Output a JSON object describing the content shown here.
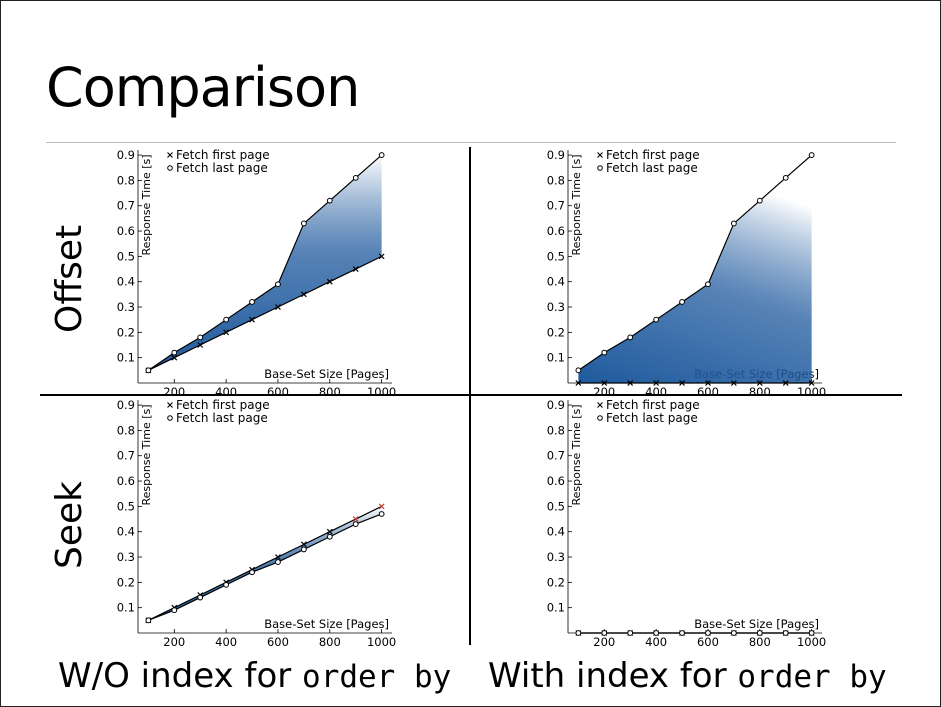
{
  "slide": {
    "title": "Comparison",
    "row_labels": [
      "Offset",
      "Seek"
    ],
    "col_labels": [
      {
        "text": "W/O index for ",
        "code": "order by"
      },
      {
        "text": "With index for ",
        "code": "order by"
      }
    ]
  },
  "colors": {
    "fill_dark": "#1f5a9e",
    "fill_light": "#ffffff",
    "line": "#000000",
    "marker_red": "#c0392b"
  },
  "chart_data": [
    {
      "type": "area",
      "panel": "Offset / W/O index",
      "xlabel": "Base-Set Size [Pages]",
      "ylabel": "Response Time [s]",
      "xlim": [
        60,
        1040
      ],
      "ylim": [
        0,
        0.92
      ],
      "xticks": [
        200,
        400,
        600,
        800,
        1000
      ],
      "yticks": [
        0.1,
        0.2,
        0.3,
        0.4,
        0.5,
        0.6,
        0.7,
        0.8,
        0.9
      ],
      "legend": "top-left",
      "x": [
        100,
        200,
        300,
        400,
        500,
        600,
        700,
        800,
        900,
        1000
      ],
      "series": [
        {
          "name": "Fetch first page",
          "marker": "x",
          "values": [
            0.05,
            0.1,
            0.15,
            0.2,
            0.25,
            0.3,
            0.35,
            0.4,
            0.45,
            0.5
          ]
        },
        {
          "name": "Fetch last page",
          "marker": "o",
          "values": [
            0.05,
            0.12,
            0.18,
            0.25,
            0.32,
            0.39,
            0.63,
            0.72,
            0.81,
            0.9
          ]
        }
      ]
    },
    {
      "type": "area",
      "panel": "Offset / With index",
      "xlabel": "Base-Set Size [Pages]",
      "ylabel": "Response Time [s]",
      "xlim": [
        60,
        1040
      ],
      "ylim": [
        0,
        0.92
      ],
      "xticks": [
        200,
        400,
        600,
        800,
        1000
      ],
      "yticks": [
        0.1,
        0.2,
        0.3,
        0.4,
        0.5,
        0.6,
        0.7,
        0.8,
        0.9
      ],
      "legend": "top-left",
      "x": [
        100,
        200,
        300,
        400,
        500,
        600,
        700,
        800,
        900,
        1000
      ],
      "series": [
        {
          "name": "Fetch first page",
          "marker": "x",
          "values": [
            0.0,
            0.0,
            0.0,
            0.0,
            0.0,
            0.0,
            0.0,
            0.0,
            0.0,
            0.0
          ]
        },
        {
          "name": "Fetch last page",
          "marker": "o",
          "values": [
            0.05,
            0.12,
            0.18,
            0.25,
            0.32,
            0.39,
            0.63,
            0.72,
            0.81,
            0.9
          ]
        }
      ]
    },
    {
      "type": "area",
      "panel": "Seek / W/O index",
      "xlabel": "Base-Set Size [Pages]",
      "ylabel": "Response Time [s]",
      "xlim": [
        60,
        1040
      ],
      "ylim": [
        0,
        0.92
      ],
      "xticks": [
        200,
        400,
        600,
        800,
        1000
      ],
      "yticks": [
        0.1,
        0.2,
        0.3,
        0.4,
        0.5,
        0.6,
        0.7,
        0.8,
        0.9
      ],
      "legend": "top-left",
      "x": [
        100,
        200,
        300,
        400,
        500,
        600,
        700,
        800,
        900,
        1000
      ],
      "series": [
        {
          "name": "Fetch first page",
          "marker": "x",
          "values": [
            0.05,
            0.1,
            0.15,
            0.2,
            0.25,
            0.3,
            0.35,
            0.4,
            0.45,
            0.5
          ]
        },
        {
          "name": "Fetch last page",
          "marker": "o",
          "values": [
            0.05,
            0.09,
            0.14,
            0.19,
            0.24,
            0.28,
            0.33,
            0.38,
            0.43,
            0.47
          ]
        }
      ]
    },
    {
      "type": "line",
      "panel": "Seek / With index",
      "xlabel": "Base-Set Size [Pages]",
      "ylabel": "Response Time [s]",
      "xlim": [
        60,
        1040
      ],
      "ylim": [
        0,
        0.92
      ],
      "xticks": [
        200,
        400,
        600,
        800,
        1000
      ],
      "yticks": [
        0.1,
        0.2,
        0.3,
        0.4,
        0.5,
        0.6,
        0.7,
        0.8,
        0.9
      ],
      "legend": "top-left",
      "x": [
        100,
        200,
        300,
        400,
        500,
        600,
        700,
        800,
        900,
        1000
      ],
      "series": [
        {
          "name": "Fetch first page",
          "marker": "x",
          "values": [
            0.0,
            0.0,
            0.0,
            0.0,
            0.0,
            0.0,
            0.0,
            0.0,
            0.0,
            0.0
          ]
        },
        {
          "name": "Fetch last page",
          "marker": "o",
          "values": [
            0.0,
            0.0,
            0.0,
            0.0,
            0.0,
            0.0,
            0.0,
            0.0,
            0.0,
            0.0
          ]
        }
      ]
    }
  ]
}
